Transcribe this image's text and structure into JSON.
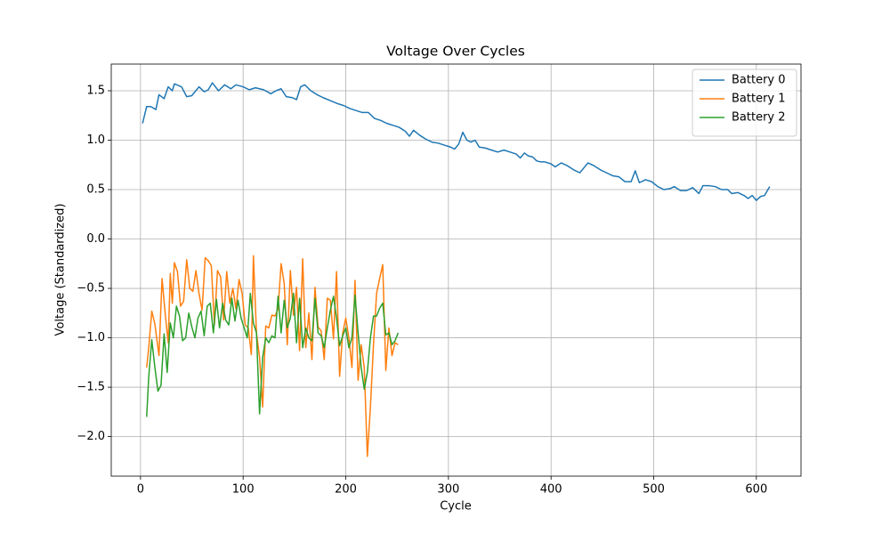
{
  "chart_data": {
    "type": "line",
    "title": "Voltage Over Cycles",
    "x_label": "Cycle",
    "y_label": "Voltage (Standardized)",
    "xlim": [
      -28.5,
      643.5
    ],
    "ylim": [
      -2.4,
      1.77
    ],
    "xticks": [
      0,
      100,
      200,
      300,
      400,
      500,
      600
    ],
    "yticks": [
      {
        "value": -2.0,
        "label": "−2.0"
      },
      {
        "value": -1.5,
        "label": "−1.5"
      },
      {
        "value": -1.0,
        "label": "−1.0"
      },
      {
        "value": -0.5,
        "label": "−0.5"
      },
      {
        "value": 0.0,
        "label": "0.0"
      },
      {
        "value": 0.5,
        "label": "0.5"
      },
      {
        "value": 1.0,
        "label": "1.0"
      },
      {
        "value": 1.5,
        "label": "1.5"
      }
    ],
    "grid": true,
    "legend": "upper right",
    "series": [
      {
        "name": "Battery 0",
        "color": "#1f77b4",
        "x": [
          2,
          6,
          10,
          15,
          18,
          23,
          27,
          31,
          33,
          40,
          45,
          50,
          57,
          62,
          66,
          70,
          76,
          82,
          88,
          93,
          100,
          106,
          112,
          120,
          127,
          132,
          137,
          142,
          148,
          152,
          156,
          160,
          166,
          172,
          178,
          185,
          192,
          198,
          204,
          210,
          216,
          222,
          228,
          234,
          240,
          246,
          252,
          258,
          262,
          266,
          272,
          278,
          284,
          290,
          296,
          302,
          306,
          310,
          314,
          318,
          322,
          326,
          330,
          336,
          342,
          348,
          354,
          360,
          366,
          370,
          374,
          378,
          382,
          386,
          390,
          394,
          400,
          404,
          410,
          416,
          422,
          428,
          432,
          436,
          442,
          448,
          454,
          460,
          466,
          472,
          478,
          482,
          486,
          492,
          498,
          504,
          510,
          516,
          520,
          526,
          532,
          538,
          544,
          548,
          554,
          560,
          566,
          572,
          576,
          582,
          588,
          592,
          596,
          600,
          604,
          608,
          613
        ],
        "values": [
          1.17,
          1.34,
          1.34,
          1.31,
          1.46,
          1.42,
          1.54,
          1.5,
          1.57,
          1.54,
          1.44,
          1.45,
          1.54,
          1.49,
          1.51,
          1.58,
          1.5,
          1.56,
          1.52,
          1.56,
          1.54,
          1.51,
          1.53,
          1.51,
          1.47,
          1.5,
          1.52,
          1.44,
          1.43,
          1.41,
          1.54,
          1.56,
          1.5,
          1.46,
          1.43,
          1.4,
          1.37,
          1.35,
          1.32,
          1.3,
          1.28,
          1.28,
          1.22,
          1.2,
          1.17,
          1.15,
          1.13,
          1.09,
          1.04,
          1.1,
          1.05,
          1.01,
          0.98,
          0.97,
          0.95,
          0.93,
          0.91,
          0.96,
          1.08,
          1.0,
          0.98,
          1.0,
          0.93,
          0.92,
          0.9,
          0.88,
          0.9,
          0.88,
          0.86,
          0.82,
          0.87,
          0.84,
          0.83,
          0.79,
          0.78,
          0.78,
          0.76,
          0.73,
          0.77,
          0.74,
          0.7,
          0.67,
          0.72,
          0.77,
          0.74,
          0.7,
          0.67,
          0.64,
          0.63,
          0.58,
          0.58,
          0.69,
          0.57,
          0.6,
          0.58,
          0.53,
          0.5,
          0.51,
          0.53,
          0.49,
          0.49,
          0.52,
          0.46,
          0.54,
          0.54,
          0.53,
          0.5,
          0.5,
          0.46,
          0.47,
          0.44,
          0.41,
          0.44,
          0.39,
          0.43,
          0.44,
          0.53
        ]
      },
      {
        "name": "Battery 1",
        "color": "#ff7f0e",
        "x": [
          6,
          8,
          11,
          14,
          18,
          21,
          24,
          27,
          29,
          31,
          33,
          36,
          39,
          42,
          45,
          48,
          51,
          54,
          57,
          60,
          63,
          66,
          69,
          72,
          75,
          78,
          81,
          84,
          87,
          90,
          93,
          96,
          99,
          102,
          105,
          108,
          110,
          113,
          116,
          119,
          122,
          125,
          128,
          131,
          134,
          137,
          140,
          143,
          146,
          149,
          152,
          155,
          158,
          161,
          164,
          167,
          170,
          173,
          176,
          179,
          182,
          185,
          188,
          191,
          194,
          197,
          200,
          203,
          206,
          209,
          212,
          215,
          218,
          221,
          224,
          227,
          230,
          233,
          236,
          239,
          242,
          245,
          248,
          251
        ],
        "values": [
          -1.3,
          -1.1,
          -0.73,
          -0.86,
          -1.18,
          -0.4,
          -0.75,
          -1.05,
          -0.35,
          -0.65,
          -0.24,
          -0.33,
          -0.68,
          -0.63,
          -0.21,
          -0.5,
          -0.53,
          -0.32,
          -0.55,
          -0.72,
          -0.19,
          -0.22,
          -0.27,
          -0.87,
          -0.32,
          -0.38,
          -0.82,
          -0.33,
          -0.65,
          -0.5,
          -0.71,
          -0.41,
          -0.55,
          -0.87,
          -0.9,
          -1.17,
          -0.17,
          -0.95,
          -1.2,
          -1.7,
          -0.88,
          -0.9,
          -0.77,
          -0.78,
          -0.71,
          -0.25,
          -0.45,
          -1.07,
          -0.32,
          -0.77,
          -0.49,
          -1.13,
          -0.2,
          -1.1,
          -0.75,
          -1.22,
          -0.49,
          -0.89,
          -0.93,
          -1.22,
          -0.6,
          -0.62,
          -1.01,
          -0.33,
          -1.39,
          -0.95,
          -0.8,
          -1.0,
          -1.3,
          -0.42,
          -1.43,
          -1.07,
          -1.3,
          -2.2,
          -1.7,
          -1.07,
          -0.55,
          -0.4,
          -0.26,
          -1.33,
          -0.9,
          -1.18,
          -1.05,
          -1.07
        ]
      },
      {
        "name": "Battery 2",
        "color": "#2ca02c",
        "x": [
          6,
          8,
          11,
          14,
          17,
          20,
          23,
          26,
          29,
          32,
          35,
          38,
          41,
          44,
          47,
          50,
          53,
          56,
          59,
          62,
          65,
          68,
          71,
          74,
          77,
          80,
          83,
          86,
          89,
          92,
          95,
          98,
          101,
          104,
          107,
          110,
          113,
          116,
          119,
          122,
          125,
          128,
          131,
          134,
          137,
          140,
          143,
          146,
          149,
          152,
          155,
          158,
          161,
          164,
          167,
          170,
          173,
          176,
          179,
          182,
          185,
          188,
          191,
          194,
          197,
          200,
          203,
          206,
          209,
          212,
          215,
          218,
          221,
          224,
          227,
          230,
          233,
          236,
          239,
          242,
          245,
          248,
          251
        ],
        "values": [
          -1.8,
          -1.4,
          -1.02,
          -1.3,
          -1.54,
          -1.48,
          -0.96,
          -1.35,
          -0.85,
          -1.0,
          -0.68,
          -0.78,
          -1.03,
          -1.0,
          -0.75,
          -0.89,
          -1.0,
          -0.8,
          -0.73,
          -0.98,
          -0.68,
          -0.65,
          -0.95,
          -0.61,
          -0.9,
          -0.65,
          -0.82,
          -0.87,
          -0.6,
          -0.83,
          -0.62,
          -0.8,
          -0.9,
          -1.0,
          -0.55,
          -0.85,
          -0.95,
          -1.77,
          -1.2,
          -1.0,
          -1.05,
          -0.98,
          -1.0,
          -0.58,
          -0.95,
          -0.62,
          -0.9,
          -0.8,
          -0.55,
          -1.05,
          -0.6,
          -1.1,
          -0.9,
          -1.0,
          -1.03,
          -0.6,
          -0.95,
          -0.98,
          -1.1,
          -0.9,
          -0.72,
          -0.58,
          -0.8,
          -1.08,
          -0.98,
          -0.9,
          -1.1,
          -1.0,
          -0.57,
          -0.95,
          -1.3,
          -1.52,
          -1.35,
          -1.0,
          -0.78,
          -0.78,
          -0.7,
          -0.65,
          -0.97,
          -0.95,
          -1.07,
          -1.03,
          -0.95
        ]
      }
    ]
  }
}
